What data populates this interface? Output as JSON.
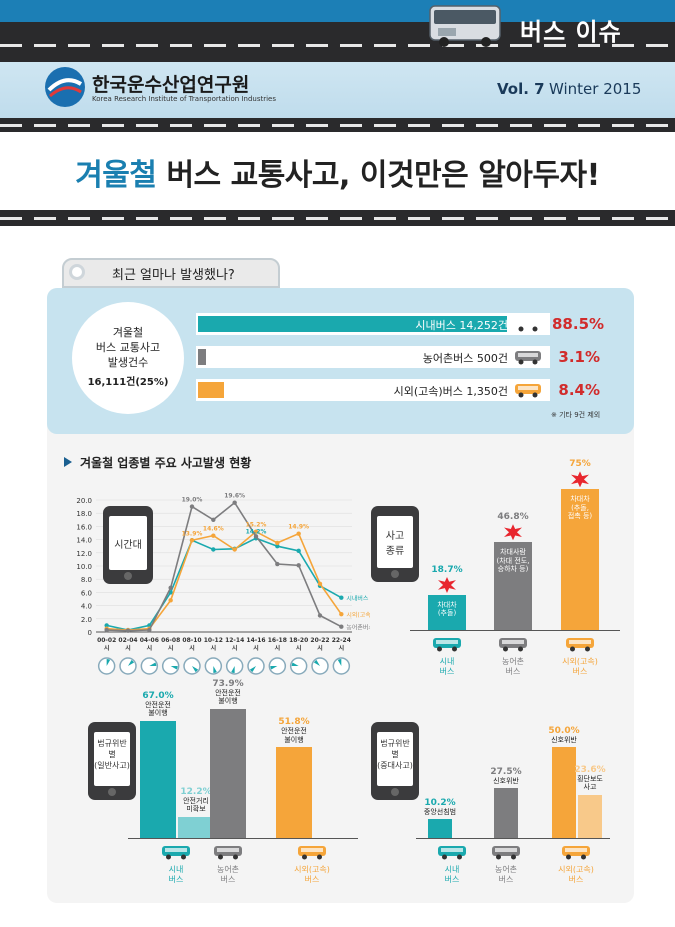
{
  "header": {
    "issue_label": "버스 이슈",
    "org_name": "한국운수산업연구원",
    "org_name_en": "Korea Research Institute of Transportation Industries",
    "vol": "Vol. 7",
    "season": "Winter 2015"
  },
  "title": {
    "highlight": "겨울철",
    "rest": " 버스 교통사고, 이것만은 알아두자!"
  },
  "summary": {
    "question": "최근 얼마나 발생했나?",
    "circle_line1": "겨울철",
    "circle_line2": "버스 교통사고",
    "circle_line3": "발생건수",
    "circle_total": "16,111건(25%)",
    "rows": [
      {
        "label": "시내버스 14,252건",
        "pct": "88.5%",
        "share": 88.5,
        "color": "#1aa9ae"
      },
      {
        "label": "농어촌버스 500건",
        "pct": "3.1%",
        "share": 3.1,
        "color": "#7d7d7f"
      },
      {
        "label": "시외(고속)버스 1,350건",
        "pct": "8.4%",
        "share": 8.4,
        "color": "#f5a53a"
      }
    ],
    "note": "※ 기타 9건 제외"
  },
  "section2_title": "겨울철 업종별 주요 사고발생 현황",
  "chart_data": [
    {
      "type": "line",
      "title": "시간대",
      "categories": [
        "00-02\n시",
        "02-04\n시",
        "04-06\n시",
        "06-08\n시",
        "08-10\n시",
        "10-12\n시",
        "12-14\n시",
        "14-16\n시",
        "16-18\n시",
        "18-20\n시",
        "20-22\n시",
        "22-24\n시"
      ],
      "yticks": [
        "0",
        "2.0",
        "4.0",
        "6.0",
        "8.0",
        "10.0",
        "12.0",
        "14.0",
        "16.0",
        "18.0",
        "20.0"
      ],
      "ylim": [
        0,
        20
      ],
      "series": [
        {
          "name": "시내버스",
          "color": "#1aa9ae",
          "values": [
            1.0,
            0.3,
            1.0,
            6.0,
            13.9,
            12.5,
            12.6,
            14.2,
            13.0,
            12.3,
            7.0,
            5.2
          ]
        },
        {
          "name": "시외(고속)버스",
          "color": "#f5a53a",
          "values": [
            0.5,
            0.3,
            0.5,
            4.8,
            13.9,
            14.6,
            12.5,
            15.2,
            13.5,
            14.9,
            7.3,
            2.7
          ]
        },
        {
          "name": "농어촌버스",
          "color": "#7d7d7f",
          "values": [
            0.3,
            0.2,
            0.3,
            6.7,
            19.0,
            17.0,
            19.6,
            14.5,
            10.3,
            10.1,
            2.5,
            0.8
          ]
        }
      ],
      "annotations": [
        {
          "text": "19.0%",
          "color": "#7d7d7f",
          "i": 4,
          "v": 19.0
        },
        {
          "text": "19.6%",
          "color": "#7d7d7f",
          "i": 6,
          "v": 19.6
        },
        {
          "text": "13.9%",
          "color": "#f5a53a",
          "i": 4,
          "v": 13.9
        },
        {
          "text": "14.6%",
          "color": "#f5a53a",
          "i": 5,
          "v": 14.6
        },
        {
          "text": "15.2%",
          "color": "#f5a53a",
          "i": 7,
          "v": 15.2
        },
        {
          "text": "14.9%",
          "color": "#f5a53a",
          "i": 9,
          "v": 14.9
        },
        {
          "text": "14.2%",
          "color": "#1aa9ae",
          "i": 7,
          "v": 14.2
        }
      ],
      "legend_labels": [
        "시내버스",
        "시외(고속)버스",
        "농어촌버스"
      ]
    },
    {
      "type": "bar",
      "title": "사고\n종류",
      "categories": [
        "시내\n버스",
        "농어촌\n버스",
        "시외(고속)\n버스"
      ],
      "values": [
        18.7,
        46.8,
        75
      ],
      "value_labels": [
        "18.7%",
        "46.8%",
        "75%"
      ],
      "bar_texts": [
        "차대차\n(추돌)",
        "차대사람\n(차대 전도,\n승하차 등)",
        "차대차\n(추돌,\n접촉 등)"
      ],
      "colors": [
        "#1aa9ae",
        "#7d7d7f",
        "#f5a53a"
      ],
      "ylim": [
        0,
        80
      ]
    },
    {
      "type": "bar",
      "title": "법규위반별\n(일반사고)",
      "categories": [
        "시내\n버스",
        "농어촌\n버스",
        "시외(고속)\n버스"
      ],
      "bars": [
        {
          "value": 67.0,
          "label": "67.0%",
          "sub": "안전운전\n불이행",
          "color": "#1aa9ae",
          "group": 0
        },
        {
          "value": 12.2,
          "label": "12.2%",
          "sub": "안전거리\n미확보",
          "color": "#7fd0d3",
          "group": 0
        },
        {
          "value": 73.9,
          "label": "73.9%",
          "sub": "안전운전\n불이행",
          "color": "#7d7d7f",
          "group": 1
        },
        {
          "value": 51.8,
          "label": "51.8%",
          "sub": "안전운전\n불이행",
          "color": "#f5a53a",
          "group": 2
        }
      ],
      "ylim": [
        0,
        80
      ]
    },
    {
      "type": "bar",
      "title": "법규위반별\n(중대사고)",
      "categories": [
        "시내\n버스",
        "농어촌\n버스",
        "시외(고속)\n버스"
      ],
      "bars": [
        {
          "value": 10.2,
          "label": "10.2%",
          "sub": "중앙선침범",
          "color": "#1aa9ae",
          "group": 0
        },
        {
          "value": 27.5,
          "label": "27.5%",
          "sub": "신호위반",
          "color": "#7d7d7f",
          "group": 1
        },
        {
          "value": 50.0,
          "label": "50.0%",
          "sub": "신호위반",
          "color": "#f5a53a",
          "group": 2
        },
        {
          "value": 23.6,
          "label": "23.6%",
          "sub": "횡단보도\n사고",
          "color": "#f8c98a",
          "group": 2
        }
      ],
      "ylim": [
        0,
        55
      ]
    }
  ]
}
